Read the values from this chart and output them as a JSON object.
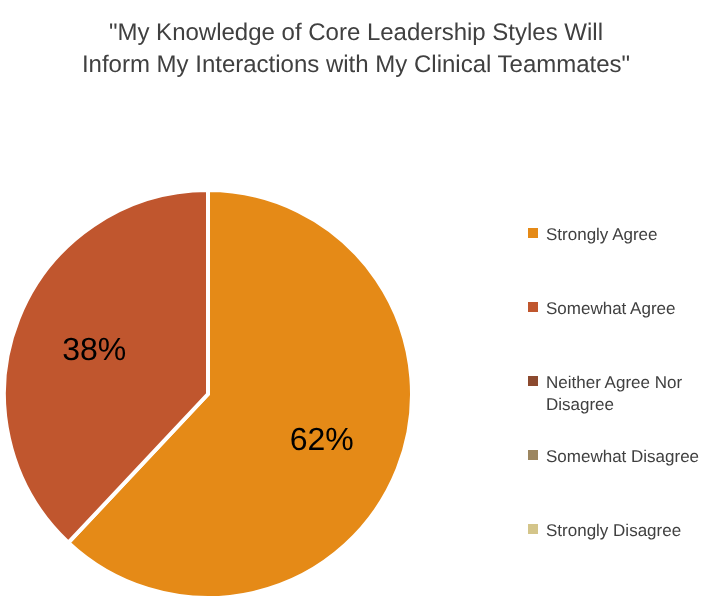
{
  "chart_data": {
    "type": "pie",
    "title": "\"My Knowledge of Core Leadership Styles Will Inform My Interactions with My Clinical Teammates\"",
    "categories": [
      "Strongly Agree",
      "Somewhat Agree",
      "Neither Agree Nor Disagree",
      "Somewhat Disagree",
      "Strongly Disagree"
    ],
    "values": [
      62,
      38,
      0,
      0,
      0
    ],
    "colors": [
      "#e58a17",
      "#c0562e",
      "#8c4a2f",
      "#9c8660",
      "#d4c58a"
    ],
    "value_labels": [
      "62%",
      "38%",
      null,
      null,
      null
    ],
    "legend": "right"
  }
}
